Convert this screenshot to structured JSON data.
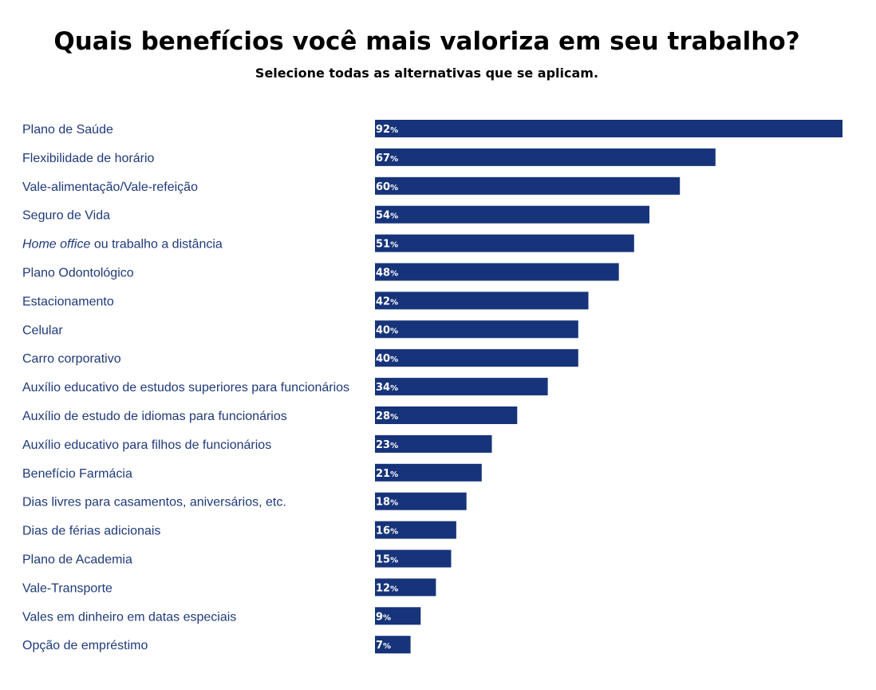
{
  "chart_data": {
    "type": "bar",
    "orientation": "horizontal",
    "title": "Quais benefícios você mais valoriza em seu trabalho?",
    "subtitle": "Selecione todas as alternativas que se aplicam.",
    "xlabel": "",
    "ylabel": "",
    "xlim": [
      0,
      92
    ],
    "grid": false,
    "unit": "%",
    "bar_color": "#17347a",
    "label_color": "#1f3a7a",
    "value_label_color": "#ffffff",
    "categories": [
      "Plano de Saúde",
      "Flexibilidade de horário",
      "Vale-alimentação/Vale-refeição",
      "Seguro de Vida",
      "Home office ou trabalho a distância",
      "Plano Odontológico",
      "Estacionamento",
      "Celular",
      "Carro corporativo",
      "Auxílio educativo de estudos superiores para funcionários",
      "Auxílio de estudo de idiomas para funcionários",
      "Auxílio educativo para filhos de funcionários",
      "Benefício Farmácia",
      "Dias livres para casamentos, aniversários, etc.",
      "Dias de férias adicionais",
      "Plano de Academia",
      "Vale-Transporte",
      "Vales em dinheiro em datas especiais",
      "Opção de empréstimo"
    ],
    "values": [
      92,
      67,
      60,
      54,
      51,
      48,
      42,
      40,
      40,
      34,
      28,
      23,
      21,
      18,
      16,
      15,
      12,
      9,
      7
    ],
    "italic_prefix": {
      "index": 4,
      "text": "Home office"
    }
  }
}
